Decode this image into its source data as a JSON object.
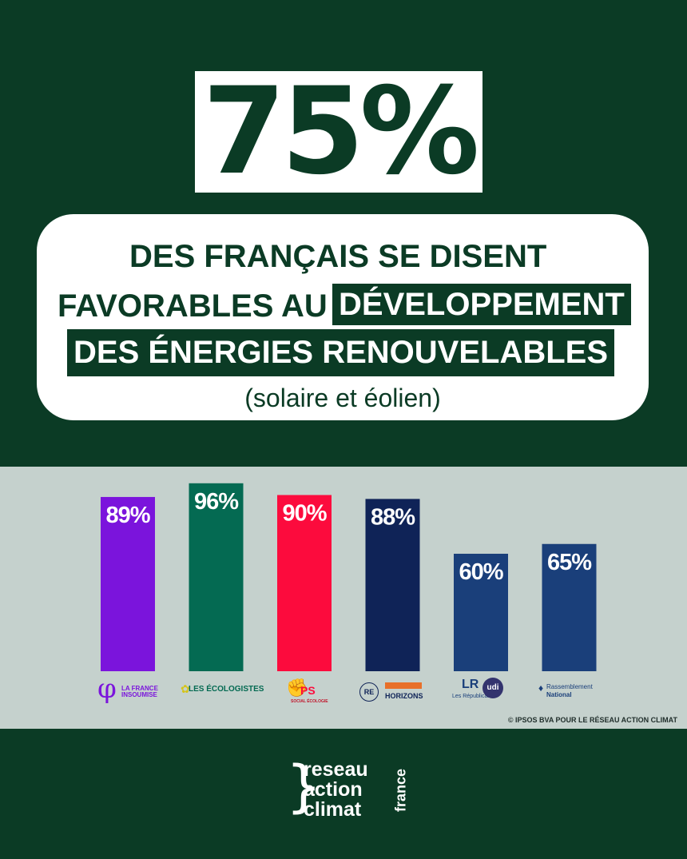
{
  "headline": {
    "big_number": "75%",
    "line1": "DES FRANÇAIS SE DISENT",
    "line2a": "FAVORABLES AU",
    "line2b": "DÉVELOPPEMENT",
    "line3": "DES ÉNERGIES RENOUVELABLES",
    "subtitle": "(solaire et éolien)"
  },
  "chart_data": {
    "type": "bar",
    "title": "",
    "xlabel": "",
    "ylabel": "",
    "ylim": [
      0,
      100
    ],
    "categories": [
      "LA FRANCE INSOUMISE",
      "LES ÉCOLOGISTES",
      "PS",
      "RENAISSANCE / HORIZONS",
      "LES RÉPUBLICAINS / UDI",
      "RASSEMBLEMENT NATIONAL"
    ],
    "values": [
      89,
      96,
      90,
      88,
      60,
      65
    ],
    "value_labels": [
      "89%",
      "96%",
      "90%",
      "88%",
      "60%",
      "65%"
    ],
    "colors": [
      "#7b14dc",
      "#046a52",
      "#fc0b3d",
      "#0f2357",
      "#1a3f7a",
      "#1a3f7a"
    ]
  },
  "party_logos": {
    "lfi": "LA FRANCE INSOUMISE",
    "eco": "LES ÉCOLOGISTES",
    "ps": "PS",
    "ps_sub": "SOCIAL ÉCOLOGIE",
    "re": "RE",
    "horizons": "HORIZONS",
    "lr": "LR",
    "lr_sub": "Les Républicains",
    "udi": "udi",
    "rn1": "Rassemblement",
    "rn2": "National"
  },
  "credit": "© IPSOS BVA POUR LE RÉSEAU ACTION CLIMAT",
  "brand": {
    "line1": "reseau",
    "line2": "action",
    "line3": "climat",
    "vertical": "france"
  }
}
